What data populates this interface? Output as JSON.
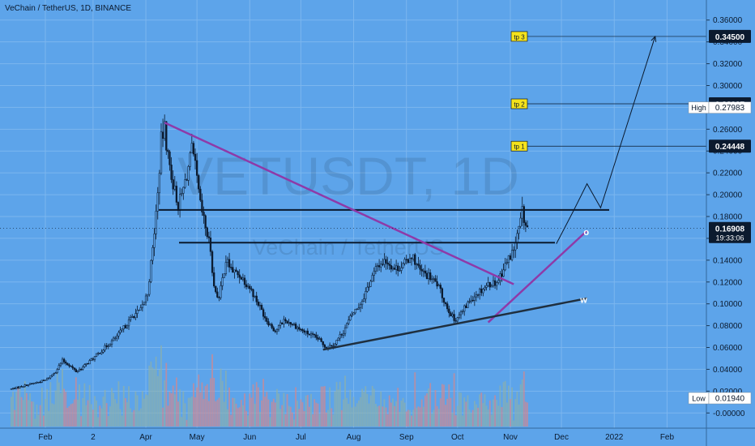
{
  "header": {
    "symbol_title": "VeChain / TetherUS, 1D, BINANCE"
  },
  "watermark": {
    "ticker": "VETUSDT, 1D",
    "name": "VeChain / TetherUS"
  },
  "colors": {
    "background": "#5da4ea",
    "candle": "#0b1a2e",
    "volume_up": "#8fb0a8",
    "volume_down": "#d9868a",
    "downtrend_line": "#8e3aa8",
    "support_line": "#8e3aa8",
    "base_line": "#1f2f3f",
    "level_lines": "#0b1a2e",
    "target_label_bg": "#f5e21b"
  },
  "chart_data": {
    "type": "candlestick",
    "x_axis": {
      "ticks": [
        {
          "label": "Feb",
          "day": 0
        },
        {
          "label": "2",
          "day": 28
        },
        {
          "label": "Apr",
          "day": 59
        },
        {
          "label": "May",
          "day": 89
        },
        {
          "label": "Jun",
          "day": 120
        },
        {
          "label": "Jul",
          "day": 150
        },
        {
          "label": "Aug",
          "day": 181
        },
        {
          "label": "Sep",
          "day": 212
        },
        {
          "label": "Oct",
          "day": 242
        },
        {
          "label": "Nov",
          "day": 273
        },
        {
          "label": "Dec",
          "day": 303
        },
        {
          "label": "2022",
          "day": 334
        },
        {
          "label": "Feb",
          "day": 365
        }
      ]
    },
    "y_axis": {
      "range": [
        -0.005,
        0.365
      ],
      "ticks": [
        "0.36000",
        "0.34000",
        "0.32000",
        "0.30000",
        "0.28000",
        "0.26000",
        "0.24000",
        "0.22000",
        "0.20000",
        "0.18000",
        "0.16000",
        "0.14000",
        "0.12000",
        "0.10000",
        "0.08000",
        "0.06000",
        "0.04000",
        "0.02000",
        "-0.00000"
      ]
    },
    "price_path": [
      [
        -20,
        0.022
      ],
      [
        -10,
        0.026
      ],
      [
        0,
        0.03
      ],
      [
        6,
        0.038
      ],
      [
        10,
        0.048
      ],
      [
        14,
        0.044
      ],
      [
        18,
        0.038
      ],
      [
        22,
        0.042
      ],
      [
        28,
        0.05
      ],
      [
        35,
        0.06
      ],
      [
        42,
        0.07
      ],
      [
        48,
        0.082
      ],
      [
        52,
        0.09
      ],
      [
        56,
        0.094
      ],
      [
        60,
        0.11
      ],
      [
        63,
        0.15
      ],
      [
        66,
        0.2
      ],
      [
        68,
        0.25
      ],
      [
        70,
        0.26
      ],
      [
        72,
        0.235
      ],
      [
        75,
        0.21
      ],
      [
        78,
        0.19
      ],
      [
        81,
        0.205
      ],
      [
        84,
        0.225
      ],
      [
        86,
        0.24
      ],
      [
        88,
        0.225
      ],
      [
        91,
        0.19
      ],
      [
        94,
        0.17
      ],
      [
        97,
        0.15
      ],
      [
        99,
        0.115
      ],
      [
        102,
        0.105
      ],
      [
        106,
        0.14
      ],
      [
        110,
        0.13
      ],
      [
        115,
        0.125
      ],
      [
        120,
        0.115
      ],
      [
        125,
        0.1
      ],
      [
        130,
        0.085
      ],
      [
        135,
        0.075
      ],
      [
        140,
        0.085
      ],
      [
        145,
        0.082
      ],
      [
        150,
        0.076
      ],
      [
        155,
        0.072
      ],
      [
        160,
        0.068
      ],
      [
        165,
        0.06
      ],
      [
        170,
        0.064
      ],
      [
        175,
        0.075
      ],
      [
        180,
        0.09
      ],
      [
        185,
        0.1
      ],
      [
        190,
        0.118
      ],
      [
        195,
        0.135
      ],
      [
        200,
        0.14
      ],
      [
        205,
        0.132
      ],
      [
        210,
        0.135
      ],
      [
        215,
        0.145
      ],
      [
        220,
        0.13
      ],
      [
        225,
        0.125
      ],
      [
        230,
        0.118
      ],
      [
        235,
        0.1
      ],
      [
        240,
        0.085
      ],
      [
        245,
        0.093
      ],
      [
        250,
        0.105
      ],
      [
        255,
        0.112
      ],
      [
        260,
        0.118
      ],
      [
        265,
        0.12
      ],
      [
        270,
        0.135
      ],
      [
        275,
        0.15
      ],
      [
        278,
        0.168
      ],
      [
        280,
        0.184
      ],
      [
        282,
        0.172
      ],
      [
        283,
        0.169
      ]
    ],
    "last_price": "0.16908",
    "countdown": "19:33:06",
    "high": {
      "label": "High",
      "value": "0.27983"
    },
    "low": {
      "label": "Low",
      "value": "0.01940"
    },
    "targets": [
      {
        "label": "tp 3",
        "value": "0.34500",
        "price": 0.345
      },
      {
        "label": "tp 2",
        "value": "0.28327",
        "price": 0.28327
      },
      {
        "label": "tp 1",
        "value": "0.24448",
        "price": 0.24448
      }
    ],
    "horizontal_levels": [
      0.186,
      0.156
    ],
    "downtrend_line": [
      [
        70,
        0.266
      ],
      [
        275,
        0.118
      ]
    ],
    "support_line": [
      [
        260,
        0.083
      ],
      [
        318,
        0.167
      ]
    ],
    "base_line": [
      [
        163,
        0.058
      ],
      [
        318,
        0.105
      ]
    ],
    "projection_path": [
      [
        300,
        0.155
      ],
      [
        310,
        0.185
      ],
      [
        318,
        0.21
      ],
      [
        326,
        0.188
      ],
      [
        358,
        0.345
      ]
    ],
    "wave_labels": [
      {
        "text": "w",
        "day": 314,
        "price": 0.104
      },
      {
        "text": "o",
        "day": 316,
        "price": 0.166
      }
    ]
  }
}
